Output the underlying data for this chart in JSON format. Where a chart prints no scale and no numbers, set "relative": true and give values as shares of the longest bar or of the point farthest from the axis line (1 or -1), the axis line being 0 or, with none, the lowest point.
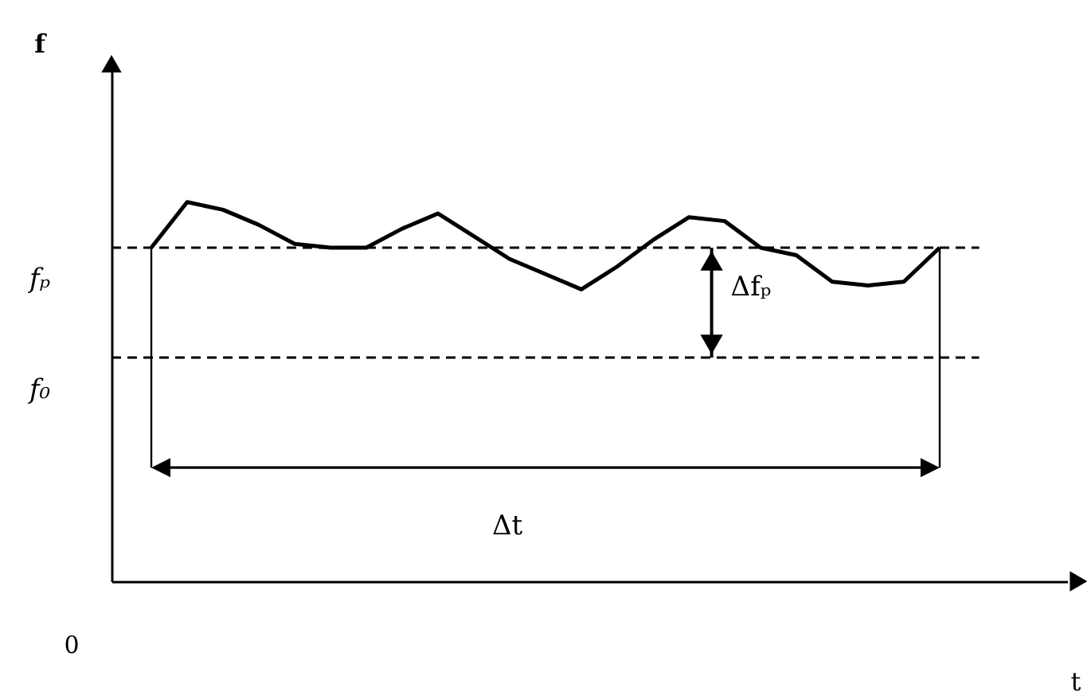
{
  "chart_data": {
    "type": "line",
    "relative": true,
    "xlabel": "t",
    "categories": [
      null,
      null,
      null,
      null,
      null,
      null,
      null,
      null,
      null,
      null,
      null,
      null,
      null,
      null,
      null,
      null,
      null,
      null,
      null,
      null,
      null,
      null,
      null
    ],
    "series": [
      {
        "color": "#000000",
        "values": [
          0.88,
          1.0,
          0.98,
          0.94,
          0.89,
          0.88,
          0.88,
          0.93,
          0.97,
          0.91,
          0.85,
          0.81,
          0.77,
          0.83,
          0.9,
          0.96,
          0.95,
          0.88,
          0.86,
          0.79,
          0.78,
          0.79,
          0.88
        ]
      }
    ],
    "line_style": "solid",
    "marker": "none",
    "grid": false,
    "tick_labels": false,
    "ref_lines": [
      {
        "axis": "y",
        "value": 0.88,
        "label": "fₚ",
        "line_style": "dashed",
        "color": "#000000"
      },
      {
        "axis": "y",
        "value": 0.59,
        "label": "f₀",
        "line_style": "dashed",
        "color": "#000000"
      }
    ],
    "annotations": [
      "0",
      "Δfₚ",
      "Δt",
      "f"
    ]
  }
}
